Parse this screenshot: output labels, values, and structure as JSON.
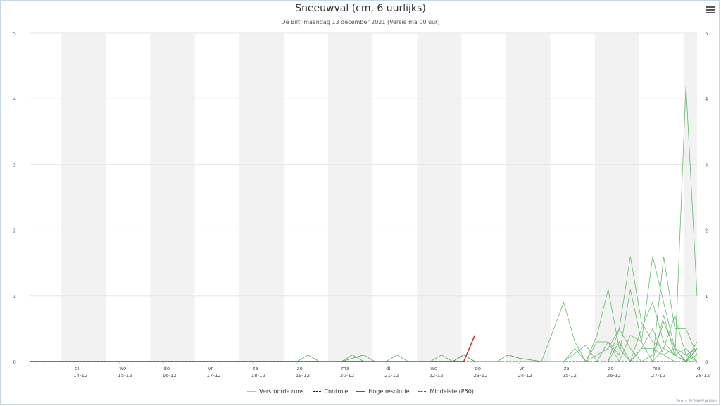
{
  "chart_data": {
    "type": "line",
    "title": "Sneeuwval (cm, 6 uurlijks)",
    "subtitle": "De Bilt, maandag 13 december 2021 (Versie ma 00 uur)",
    "ylim": [
      0,
      5
    ],
    "yticks": [
      0,
      1,
      2,
      3,
      4,
      5
    ],
    "x_start_label": "13-12",
    "x_range_days": [
      13.0,
      28.0
    ],
    "day_labels": [
      {
        "day": 14,
        "dow": "di",
        "date": "14-12"
      },
      {
        "day": 15,
        "dow": "wo",
        "date": "15-12"
      },
      {
        "day": 16,
        "dow": "do",
        "date": "16-12"
      },
      {
        "day": 17,
        "dow": "vr",
        "date": "17-12"
      },
      {
        "day": 18,
        "dow": "za",
        "date": "18-12"
      },
      {
        "day": 19,
        "dow": "zo",
        "date": "19-12"
      },
      {
        "day": 20,
        "dow": "ma",
        "date": "20-12"
      },
      {
        "day": 21,
        "dow": "di",
        "date": "21-12"
      },
      {
        "day": 22,
        "dow": "wo",
        "date": "22-12"
      },
      {
        "day": 23,
        "dow": "do",
        "date": "23-12"
      },
      {
        "day": 24,
        "dow": "vr",
        "date": "24-12"
      },
      {
        "day": 25,
        "dow": "za",
        "date": "25-12"
      },
      {
        "day": 26,
        "dow": "zo",
        "date": "26-12"
      },
      {
        "day": 27,
        "dow": "ma",
        "date": "27-12"
      },
      {
        "day": 28,
        "dow": "di",
        "date": "28-12"
      }
    ],
    "shaded_bands": [
      [
        13.7,
        14.7
      ],
      [
        15.7,
        16.7
      ],
      [
        17.7,
        18.7
      ],
      [
        19.7,
        20.7
      ],
      [
        21.7,
        22.7
      ],
      [
        23.7,
        24.7
      ],
      [
        25.7,
        26.7
      ],
      [
        27.7,
        28.0
      ]
    ],
    "legend": [
      {
        "name": "Verstoorde runs",
        "color": "#bdbdbd",
        "dash": "solid"
      },
      {
        "name": "Controle",
        "color": "#222222",
        "dash": "dashed"
      },
      {
        "name": "Hoge resolutie",
        "color": "#d62728",
        "dash": "solid"
      },
      {
        "name": "Middelste (P50)",
        "color": "#d62728",
        "dash": "dashed"
      }
    ],
    "series": [
      {
        "role": "high_resolution",
        "color": "#d62728",
        "points": [
          [
            13.0,
            0
          ],
          [
            22.75,
            0
          ],
          [
            23.0,
            0.4
          ]
        ]
      },
      {
        "role": "control",
        "color": "#222222",
        "points": [
          [
            13.0,
            0
          ],
          [
            28.0,
            0
          ]
        ]
      },
      {
        "role": "perturbed",
        "color": "#3a9a3a",
        "points": [
          [
            19.0,
            0
          ],
          [
            19.25,
            0.1
          ],
          [
            19.5,
            0
          ],
          [
            20.0,
            0
          ],
          [
            20.25,
            0.1
          ],
          [
            20.5,
            0
          ],
          [
            21.0,
            0
          ],
          [
            21.25,
            0.1
          ],
          [
            21.5,
            0
          ]
        ]
      },
      {
        "role": "perturbed",
        "color": "#3a9a3a",
        "points": [
          [
            20.0,
            0
          ],
          [
            20.5,
            0.1
          ],
          [
            20.75,
            0
          ],
          [
            22.0,
            0
          ],
          [
            22.25,
            0.1
          ],
          [
            22.5,
            0
          ],
          [
            22.75,
            0.1
          ],
          [
            23.0,
            0
          ]
        ]
      },
      {
        "role": "perturbed",
        "color": "#2f8f2f",
        "points": [
          [
            22.5,
            0
          ],
          [
            22.75,
            0.1
          ],
          [
            23.0,
            0
          ],
          [
            23.5,
            0
          ],
          [
            23.75,
            0.1
          ],
          [
            24.0,
            0.05
          ],
          [
            24.5,
            0
          ],
          [
            25.0,
            0
          ]
        ]
      },
      {
        "role": "perturbed",
        "color": "#4caf50",
        "points": [
          [
            24.0,
            0
          ],
          [
            24.5,
            0
          ],
          [
            25.0,
            0.9
          ],
          [
            25.25,
            0.3
          ],
          [
            25.5,
            0
          ],
          [
            26.0,
            0.2
          ],
          [
            26.25,
            0.5
          ],
          [
            26.5,
            0.2
          ],
          [
            26.75,
            0
          ],
          [
            27.0,
            0.1
          ],
          [
            27.25,
            0.6
          ],
          [
            27.5,
            0.2
          ],
          [
            27.75,
            0
          ],
          [
            28.0,
            0.2
          ]
        ]
      },
      {
        "role": "perturbed",
        "color": "#4caf50",
        "points": [
          [
            24.5,
            0
          ],
          [
            25.0,
            0
          ],
          [
            25.5,
            0.25
          ],
          [
            25.75,
            0
          ],
          [
            26.0,
            0.3
          ],
          [
            26.25,
            0.1
          ],
          [
            26.5,
            1.1
          ],
          [
            26.75,
            0.3
          ],
          [
            27.0,
            0
          ],
          [
            27.25,
            0.2
          ],
          [
            27.5,
            0.1
          ],
          [
            27.75,
            0.2
          ],
          [
            28.0,
            0
          ]
        ]
      },
      {
        "role": "perturbed",
        "color": "#4caf50",
        "points": [
          [
            25.0,
            0
          ],
          [
            25.25,
            0.2
          ],
          [
            25.5,
            0
          ],
          [
            25.75,
            0.3
          ],
          [
            26.0,
            0.3
          ],
          [
            26.25,
            0
          ],
          [
            26.5,
            0.4
          ],
          [
            26.75,
            0.3
          ],
          [
            27.0,
            1.6
          ],
          [
            27.25,
            0.9
          ],
          [
            27.5,
            0.2
          ],
          [
            27.75,
            0
          ],
          [
            28.0,
            0.1
          ]
        ]
      },
      {
        "role": "perturbed",
        "color": "#4caf50",
        "points": [
          [
            25.5,
            0
          ],
          [
            25.75,
            0.4
          ],
          [
            26.0,
            1.1
          ],
          [
            26.25,
            0.2
          ],
          [
            26.5,
            0
          ],
          [
            26.75,
            0.2
          ],
          [
            27.0,
            0.2
          ],
          [
            27.25,
            0.1
          ],
          [
            27.5,
            0
          ],
          [
            27.75,
            4.2
          ],
          [
            28.0,
            1.0
          ]
        ]
      },
      {
        "role": "perturbed",
        "color": "#4caf50",
        "points": [
          [
            26.0,
            0
          ],
          [
            26.25,
            0.3
          ],
          [
            26.5,
            0
          ],
          [
            26.75,
            0.2
          ],
          [
            27.0,
            0.5
          ],
          [
            27.25,
            0.1
          ],
          [
            27.5,
            0.2
          ],
          [
            27.75,
            0.1
          ],
          [
            28.0,
            0
          ]
        ]
      },
      {
        "role": "perturbed",
        "color": "#4caf50",
        "points": [
          [
            26.0,
            0
          ],
          [
            26.25,
            0.5
          ],
          [
            26.5,
            1.6
          ],
          [
            26.75,
            0.6
          ],
          [
            27.0,
            0.3
          ],
          [
            27.25,
            0.2
          ],
          [
            27.5,
            0.7
          ],
          [
            27.75,
            0.1
          ],
          [
            28.0,
            0.2
          ]
        ]
      },
      {
        "role": "perturbed",
        "color": "#4caf50",
        "points": [
          [
            26.5,
            0
          ],
          [
            26.75,
            0.5
          ],
          [
            27.0,
            0.9
          ],
          [
            27.25,
            0.3
          ],
          [
            27.5,
            0.1
          ],
          [
            27.75,
            0
          ],
          [
            28.0,
            0.3
          ]
        ]
      },
      {
        "role": "perturbed",
        "color": "#4caf50",
        "points": [
          [
            27.0,
            0
          ],
          [
            27.25,
            1.6
          ],
          [
            27.5,
            0.5
          ],
          [
            27.75,
            0.5
          ],
          [
            28.0,
            0.1
          ]
        ]
      },
      {
        "role": "perturbed",
        "color": "#4caf50",
        "points": [
          [
            27.0,
            0
          ],
          [
            27.25,
            0.7
          ],
          [
            27.5,
            0.1
          ],
          [
            27.75,
            0
          ],
          [
            28.0,
            0.2
          ]
        ]
      }
    ]
  }
}
